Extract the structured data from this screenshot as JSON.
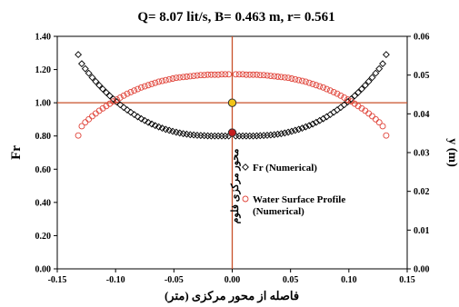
{
  "chart_data": {
    "type": "scatter",
    "title": "Q= 8.07 lit/s, B= 0.463 m, r= 0.561",
    "xlabel": "فاصله از محور مرکزی (متر)",
    "ylabel_left": "Fr",
    "ylabel_right": "y (m)",
    "xlim": [
      -0.15,
      0.15
    ],
    "ylim_left": [
      0,
      1.4
    ],
    "ylim_right": [
      0,
      0.06
    ],
    "x_ticks": [
      "-0.15",
      "-0.10",
      "-0.05",
      "0.00",
      "0.05",
      "0.10",
      "0.15"
    ],
    "y_left_ticks": [
      "0.00",
      "0.20",
      "0.40",
      "0.60",
      "0.80",
      "1.00",
      "1.20",
      "1.40"
    ],
    "y_right_ticks": [
      "0.00",
      "0.01",
      "0.02",
      "0.03",
      "0.04",
      "0.05",
      "0.06"
    ],
    "grid": false,
    "legend_position": "right",
    "reference_lines": {
      "vertical_x": 0.0,
      "horizontal_fr": 1.0,
      "color": "#c8502a"
    },
    "center_line_label": "محور مرکزی فلوم",
    "highlight_points": [
      {
        "x": 0.0,
        "y": 1.0,
        "axis": "left",
        "color": "#f2c418"
      },
      {
        "x": 0.0,
        "y": 0.82,
        "axis": "left",
        "color": "#c41e1e"
      }
    ],
    "series": [
      {
        "name": "Fr (Numerical)",
        "axis": "left",
        "marker": "diamond",
        "color": "#000000",
        "points": [
          [
            -0.132,
            1.29
          ],
          [
            -0.129,
            1.235
          ],
          [
            -0.126,
            1.205
          ],
          [
            -0.123,
            1.178
          ],
          [
            -0.12,
            1.152
          ],
          [
            -0.117,
            1.128
          ],
          [
            -0.114,
            1.105
          ],
          [
            -0.111,
            1.083
          ],
          [
            -0.108,
            1.062
          ],
          [
            -0.105,
            1.042
          ],
          [
            -0.102,
            1.023
          ],
          [
            -0.099,
            1.005
          ],
          [
            -0.096,
            0.988
          ],
          [
            -0.093,
            0.972
          ],
          [
            -0.09,
            0.957
          ],
          [
            -0.087,
            0.943
          ],
          [
            -0.084,
            0.929
          ],
          [
            -0.081,
            0.916
          ],
          [
            -0.078,
            0.904
          ],
          [
            -0.075,
            0.893
          ],
          [
            -0.072,
            0.882
          ],
          [
            -0.069,
            0.872
          ],
          [
            -0.066,
            0.863
          ],
          [
            -0.063,
            0.855
          ],
          [
            -0.06,
            0.847
          ],
          [
            -0.057,
            0.84
          ],
          [
            -0.054,
            0.834
          ],
          [
            -0.051,
            0.828
          ],
          [
            -0.048,
            0.823
          ],
          [
            -0.045,
            0.818
          ],
          [
            -0.042,
            0.814
          ],
          [
            -0.039,
            0.811
          ],
          [
            -0.036,
            0.808
          ],
          [
            -0.033,
            0.806
          ],
          [
            -0.03,
            0.804
          ],
          [
            -0.027,
            0.803
          ],
          [
            -0.024,
            0.802
          ],
          [
            -0.021,
            0.801
          ],
          [
            -0.018,
            0.8
          ],
          [
            -0.015,
            0.8
          ],
          [
            -0.012,
            0.8
          ],
          [
            -0.009,
            0.8
          ],
          [
            -0.006,
            0.8
          ],
          [
            -0.003,
            0.8
          ],
          [
            0.003,
            0.8
          ],
          [
            0.006,
            0.8
          ],
          [
            0.009,
            0.8
          ],
          [
            0.012,
            0.8
          ],
          [
            0.015,
            0.8
          ],
          [
            0.018,
            0.8
          ],
          [
            0.021,
            0.801
          ],
          [
            0.024,
            0.802
          ],
          [
            0.027,
            0.803
          ],
          [
            0.03,
            0.804
          ],
          [
            0.033,
            0.806
          ],
          [
            0.036,
            0.808
          ],
          [
            0.039,
            0.811
          ],
          [
            0.042,
            0.814
          ],
          [
            0.045,
            0.818
          ],
          [
            0.048,
            0.823
          ],
          [
            0.051,
            0.828
          ],
          [
            0.054,
            0.834
          ],
          [
            0.057,
            0.84
          ],
          [
            0.06,
            0.847
          ],
          [
            0.063,
            0.855
          ],
          [
            0.066,
            0.863
          ],
          [
            0.069,
            0.872
          ],
          [
            0.072,
            0.882
          ],
          [
            0.075,
            0.893
          ],
          [
            0.078,
            0.904
          ],
          [
            0.081,
            0.916
          ],
          [
            0.084,
            0.929
          ],
          [
            0.087,
            0.943
          ],
          [
            0.09,
            0.957
          ],
          [
            0.093,
            0.972
          ],
          [
            0.096,
            0.988
          ],
          [
            0.099,
            1.005
          ],
          [
            0.102,
            1.023
          ],
          [
            0.105,
            1.042
          ],
          [
            0.108,
            1.062
          ],
          [
            0.111,
            1.083
          ],
          [
            0.114,
            1.105
          ],
          [
            0.117,
            1.128
          ],
          [
            0.12,
            1.152
          ],
          [
            0.123,
            1.178
          ],
          [
            0.126,
            1.205
          ],
          [
            0.129,
            1.235
          ],
          [
            0.132,
            1.29
          ]
        ]
      },
      {
        "name": "Water Surface Profile (Numerical)",
        "axis": "right",
        "marker": "circle",
        "color": "#e0443a",
        "points": [
          [
            -0.132,
            0.0344
          ],
          [
            -0.129,
            0.0368
          ],
          [
            -0.126,
            0.0378
          ],
          [
            -0.123,
            0.0386
          ],
          [
            -0.12,
            0.0394
          ],
          [
            -0.117,
            0.0401
          ],
          [
            -0.114,
            0.0408
          ],
          [
            -0.111,
            0.0414
          ],
          [
            -0.108,
            0.042
          ],
          [
            -0.105,
            0.0426
          ],
          [
            -0.102,
            0.0432
          ],
          [
            -0.099,
            0.0437
          ],
          [
            -0.096,
            0.0442
          ],
          [
            -0.093,
            0.0447
          ],
          [
            -0.09,
            0.0452
          ],
          [
            -0.087,
            0.0456
          ],
          [
            -0.084,
            0.046
          ],
          [
            -0.081,
            0.0464
          ],
          [
            -0.078,
            0.0468
          ],
          [
            -0.075,
            0.0471
          ],
          [
            -0.072,
            0.0474
          ],
          [
            -0.069,
            0.0477
          ],
          [
            -0.066,
            0.048
          ],
          [
            -0.063,
            0.0483
          ],
          [
            -0.06,
            0.0485
          ],
          [
            -0.057,
            0.0487
          ],
          [
            -0.054,
            0.0489
          ],
          [
            -0.051,
            0.0491
          ],
          [
            -0.048,
            0.0493
          ],
          [
            -0.045,
            0.0494
          ],
          [
            -0.042,
            0.0495
          ],
          [
            -0.039,
            0.0496
          ],
          [
            -0.036,
            0.0497
          ],
          [
            -0.033,
            0.0498
          ],
          [
            -0.03,
            0.0499
          ],
          [
            -0.027,
            0.05
          ],
          [
            -0.024,
            0.05
          ],
          [
            -0.021,
            0.0501
          ],
          [
            -0.018,
            0.0501
          ],
          [
            -0.015,
            0.0501
          ],
          [
            -0.012,
            0.0501
          ],
          [
            -0.009,
            0.0502
          ],
          [
            -0.006,
            0.0502
          ],
          [
            -0.003,
            0.0502
          ],
          [
            0.003,
            0.0502
          ],
          [
            0.006,
            0.0502
          ],
          [
            0.009,
            0.0502
          ],
          [
            0.012,
            0.0501
          ],
          [
            0.015,
            0.0501
          ],
          [
            0.018,
            0.0501
          ],
          [
            0.021,
            0.0501
          ],
          [
            0.024,
            0.05
          ],
          [
            0.027,
            0.05
          ],
          [
            0.03,
            0.0499
          ],
          [
            0.033,
            0.0498
          ],
          [
            0.036,
            0.0497
          ],
          [
            0.039,
            0.0496
          ],
          [
            0.042,
            0.0495
          ],
          [
            0.045,
            0.0494
          ],
          [
            0.048,
            0.0493
          ],
          [
            0.051,
            0.0491
          ],
          [
            0.054,
            0.0489
          ],
          [
            0.057,
            0.0487
          ],
          [
            0.06,
            0.0485
          ],
          [
            0.063,
            0.0483
          ],
          [
            0.066,
            0.048
          ],
          [
            0.069,
            0.0477
          ],
          [
            0.072,
            0.0474
          ],
          [
            0.075,
            0.0471
          ],
          [
            0.078,
            0.0468
          ],
          [
            0.081,
            0.0464
          ],
          [
            0.084,
            0.046
          ],
          [
            0.087,
            0.0456
          ],
          [
            0.09,
            0.0452
          ],
          [
            0.093,
            0.0447
          ],
          [
            0.096,
            0.0442
          ],
          [
            0.099,
            0.0437
          ],
          [
            0.102,
            0.0432
          ],
          [
            0.105,
            0.0426
          ],
          [
            0.108,
            0.042
          ],
          [
            0.111,
            0.0414
          ],
          [
            0.114,
            0.0408
          ],
          [
            0.117,
            0.0401
          ],
          [
            0.12,
            0.0394
          ],
          [
            0.123,
            0.0386
          ],
          [
            0.126,
            0.0378
          ],
          [
            0.129,
            0.0368
          ],
          [
            0.132,
            0.0344
          ]
        ]
      }
    ],
    "legend": {
      "entries": [
        {
          "label_lines": [
            "Fr (Numerical)"
          ],
          "series": 0
        },
        {
          "label_lines": [
            "Water Surface Profile",
            "(Numerical)"
          ],
          "series": 1
        }
      ]
    }
  }
}
